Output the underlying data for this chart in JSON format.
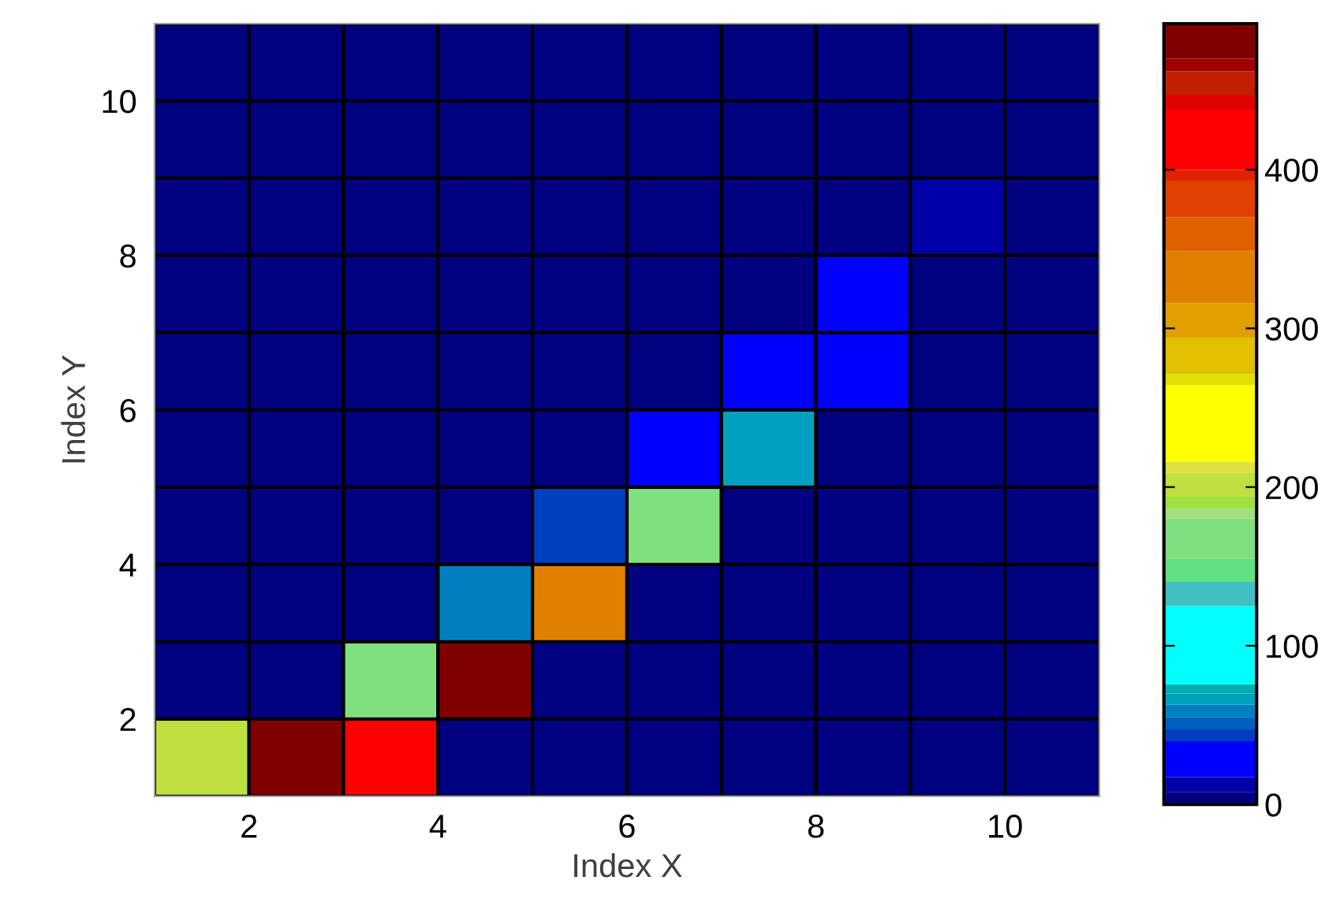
{
  "chart_data": {
    "type": "heatmap",
    "xlabel": "Index X",
    "ylabel": "Index Y",
    "xlim": [
      1,
      11
    ],
    "xticks": [
      2,
      4,
      6,
      8,
      10
    ],
    "ylim": [
      1,
      11
    ],
    "yticks": [
      2,
      4,
      6,
      8,
      10
    ],
    "cells": [
      [
        0,
        0,
        0,
        0,
        0,
        0,
        0,
        0,
        0,
        0
      ],
      [
        0,
        0,
        0,
        0,
        0,
        0,
        0,
        0,
        0,
        0
      ],
      [
        0,
        0,
        0,
        0,
        0,
        0,
        0,
        0,
        12,
        0
      ],
      [
        0,
        0,
        0,
        0,
        0,
        0,
        0,
        30,
        0,
        0
      ],
      [
        0,
        0,
        0,
        0,
        0,
        0,
        30,
        30,
        0,
        0
      ],
      [
        0,
        0,
        0,
        0,
        0,
        30,
        67,
        0,
        0,
        0
      ],
      [
        0,
        0,
        0,
        0,
        43,
        165,
        0,
        0,
        0,
        0
      ],
      [
        0,
        0,
        0,
        60,
        330,
        0,
        0,
        0,
        0,
        0
      ],
      [
        0,
        0,
        165,
        480,
        0,
        0,
        0,
        0,
        0,
        0
      ],
      [
        200,
        480,
        420,
        0,
        0,
        0,
        0,
        0,
        0,
        0
      ]
    ],
    "clim": [
      0,
      492
    ],
    "cticks": [
      0,
      100,
      200,
      300,
      400
    ],
    "grid": false
  }
}
